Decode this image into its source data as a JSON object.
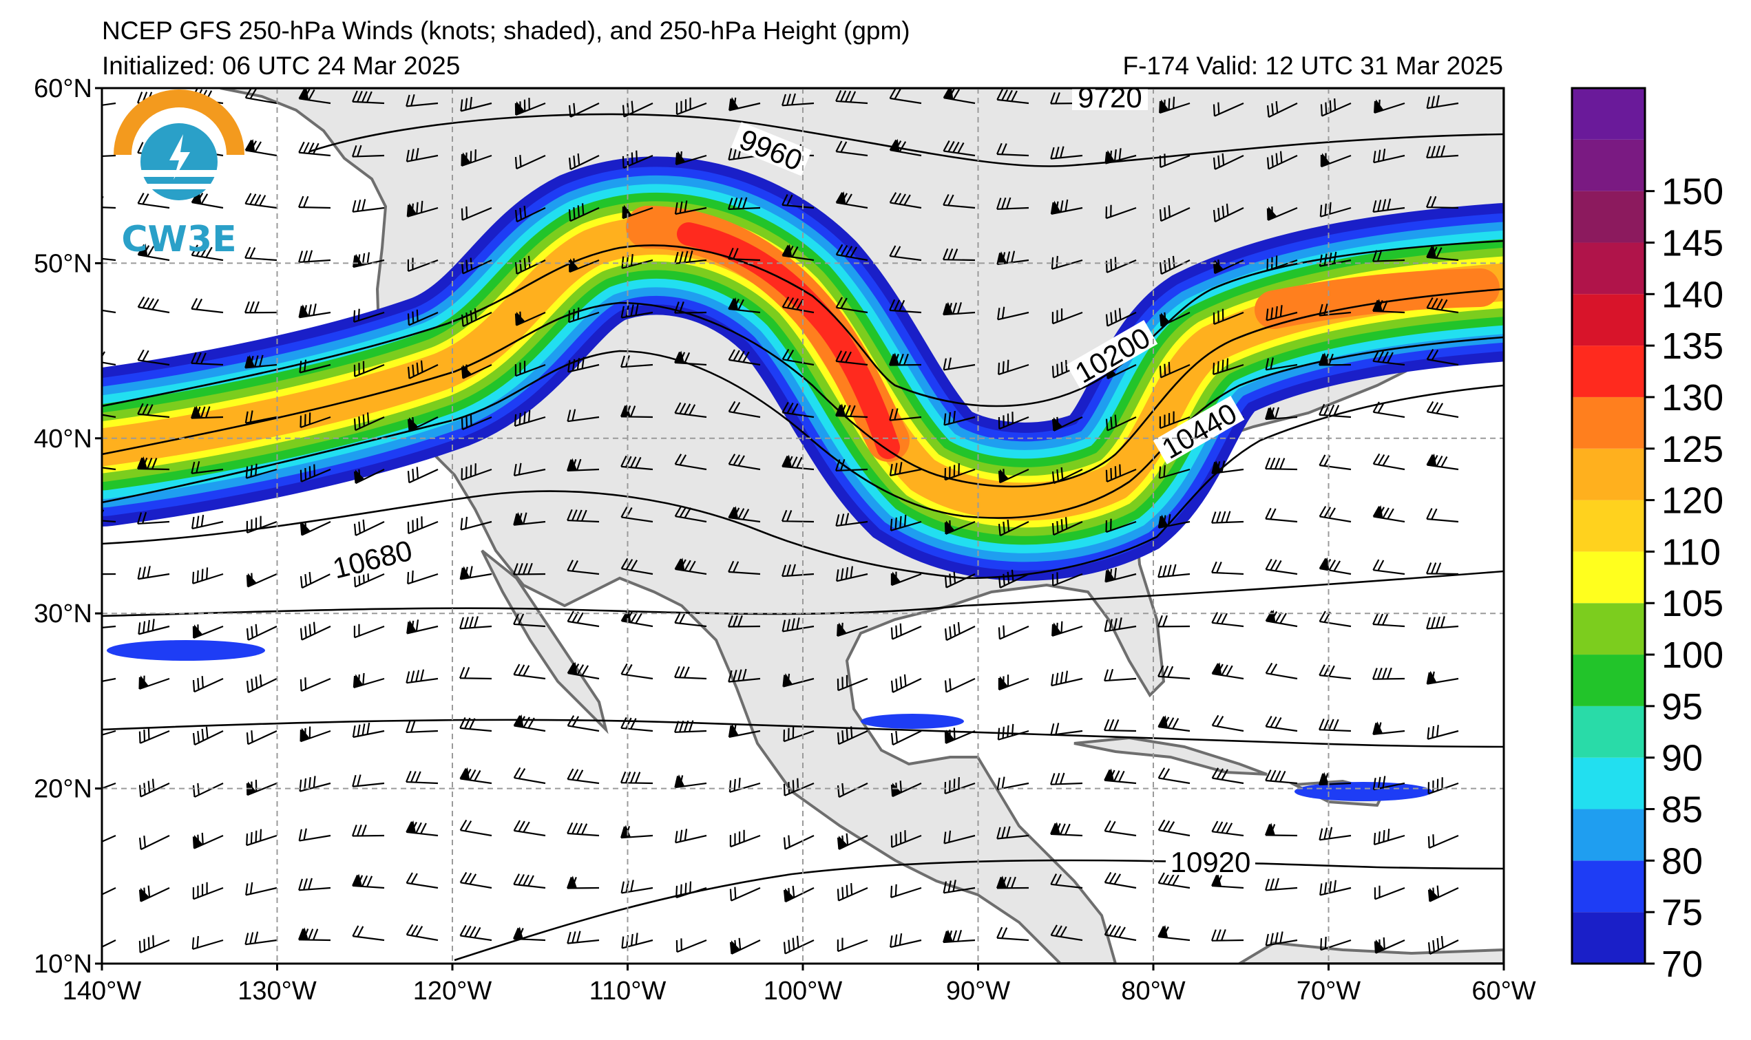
{
  "header": {
    "title": "NCEP GFS 250-hPa Winds (knots; shaded), and 250-hPa Height (gpm)",
    "initialized": "Initialized: 06 UTC 24 Mar 2025",
    "valid": "F-174  Valid: 12 UTC 31 Mar 2025"
  },
  "logo": {
    "text": "CW3E"
  },
  "axes": {
    "lon_labels": [
      "140°W",
      "130°W",
      "120°W",
      "110°W",
      "100°W",
      "90°W",
      "80°W",
      "70°W",
      "60°W"
    ],
    "lon_values": [
      -140,
      -130,
      -120,
      -110,
      -100,
      -90,
      -80,
      -70,
      -60
    ],
    "lat_labels": [
      "60°N",
      "50°N",
      "40°N",
      "30°N",
      "20°N",
      "10°N"
    ],
    "lat_values": [
      60,
      50,
      40,
      30,
      20,
      10
    ],
    "grid": true
  },
  "colorbar": {
    "ticks": [
      "70",
      "75",
      "80",
      "85",
      "90",
      "95",
      "100",
      "105",
      "110",
      "120",
      "125",
      "130",
      "135",
      "140",
      "145",
      "150"
    ],
    "levels": [
      70,
      75,
      80,
      85,
      90,
      95,
      100,
      105,
      110,
      115,
      120,
      125,
      130,
      135,
      140,
      145,
      150,
      155
    ],
    "colors": [
      "#1a1fc8",
      "#1e3df5",
      "#1f9ef0",
      "#22dff0",
      "#29dba8",
      "#22c42a",
      "#7ccd1e",
      "#ffff1e",
      "#ffd21e",
      "#ffb01e",
      "#ff7f1e",
      "#ff2a1e",
      "#d8142a",
      "#b0144a",
      "#8c1a5e",
      "#7a1a82",
      "#6a1a9a"
    ]
  },
  "contour_labels": [
    "9720",
    "9960",
    "10200",
    "10440",
    "10680",
    "10920"
  ],
  "colors": {
    "land": "#e6e6e6",
    "coast": "#6e6e6e",
    "grid": "#9a9a9a",
    "logo_orange": "#f39a1e",
    "logo_blue": "#2aa0c8"
  }
}
